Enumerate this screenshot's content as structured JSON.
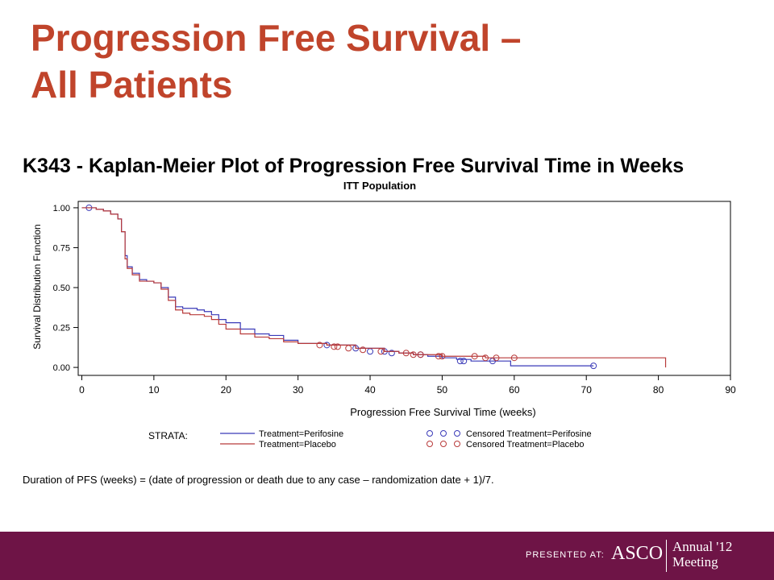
{
  "slide": {
    "title_line1": "Progression Free Survival –",
    "title_line2": "All Patients",
    "title_color": "#c0442b",
    "footnote": "Duration of PFS (weeks) = (date of progression or death due to any case – randomization date + 1)/7."
  },
  "footer": {
    "presented_at": "PRESENTED AT:",
    "logo_text": "ASCO",
    "meeting_line1": "Annual '12",
    "meeting_line2": "Meeting",
    "bar_color": "#6e1446"
  },
  "chart_data": {
    "type": "line",
    "title": "K343 - Kaplan-Meier Plot of Progression Free Survival Time in Weeks",
    "subtitle": "ITT Population",
    "xlabel": "Progression Free Survival Time (weeks)",
    "ylabel": "Survival Distribution Function",
    "xlim": [
      0,
      90
    ],
    "ylim": [
      0,
      1
    ],
    "xticks": [
      0,
      10,
      20,
      30,
      40,
      50,
      60,
      70,
      80,
      90
    ],
    "xtick_labels": [
      "0",
      "10",
      "20",
      "30",
      "40",
      "50",
      "60",
      "70",
      "80",
      "90"
    ],
    "yticks": [
      0,
      0.25,
      0.5,
      0.75,
      1
    ],
    "ytick_labels": [
      "0.00",
      "0.25",
      "0.50",
      "0.75",
      "1.00"
    ],
    "grid": false,
    "legend_title": "STRATA:",
    "legend_position": "bottom",
    "series": [
      {
        "name": "Treatment=Perifosine",
        "censored_name": "Censored Treatment=Perifosine",
        "color": "#3a3ab8",
        "x": [
          0,
          1,
          2,
          3,
          4,
          5,
          5.5,
          6,
          6.3,
          7,
          8,
          9,
          10,
          11,
          12,
          13,
          14,
          15,
          16,
          17,
          18,
          19,
          20,
          22,
          24,
          26,
          28,
          30,
          34,
          38,
          42,
          44,
          46,
          48,
          50,
          52,
          54,
          56,
          59,
          59.5,
          71
        ],
        "y": [
          1.0,
          1.0,
          0.99,
          0.98,
          0.96,
          0.93,
          0.85,
          0.7,
          0.63,
          0.59,
          0.55,
          0.54,
          0.53,
          0.5,
          0.44,
          0.38,
          0.37,
          0.37,
          0.36,
          0.35,
          0.33,
          0.3,
          0.28,
          0.24,
          0.21,
          0.2,
          0.17,
          0.15,
          0.14,
          0.12,
          0.1,
          0.09,
          0.08,
          0.07,
          0.06,
          0.05,
          0.04,
          0.04,
          0.04,
          0.01,
          0.01
        ],
        "censored_x": [
          1,
          34,
          38,
          40,
          42,
          43,
          47,
          52.5,
          53,
          57,
          71
        ],
        "censored_y": [
          1.0,
          0.14,
          0.12,
          0.1,
          0.1,
          0.09,
          0.08,
          0.04,
          0.04,
          0.04,
          0.01
        ]
      },
      {
        "name": "Treatment=Placebo",
        "censored_name": "Censored Treatment=Placebo",
        "color": "#b83a3a",
        "x": [
          0,
          1,
          2,
          3,
          4,
          5,
          5.5,
          6,
          6.3,
          7,
          8,
          9,
          10,
          11,
          12,
          13,
          14,
          15,
          16,
          17,
          18,
          19,
          20,
          22,
          24,
          26,
          28,
          30,
          34,
          38,
          42,
          44,
          46,
          48,
          50,
          52,
          54,
          56,
          58,
          60,
          81,
          81
        ],
        "y": [
          1.0,
          1.0,
          0.99,
          0.98,
          0.96,
          0.93,
          0.85,
          0.68,
          0.62,
          0.58,
          0.54,
          0.54,
          0.53,
          0.49,
          0.42,
          0.36,
          0.34,
          0.33,
          0.33,
          0.32,
          0.3,
          0.27,
          0.24,
          0.21,
          0.19,
          0.18,
          0.16,
          0.15,
          0.14,
          0.12,
          0.1,
          0.09,
          0.08,
          0.08,
          0.07,
          0.07,
          0.07,
          0.06,
          0.06,
          0.06,
          0.06,
          0.0
        ],
        "censored_x": [
          33,
          35,
          35.5,
          37,
          39,
          41.5,
          45,
          46,
          47,
          49.5,
          50,
          54.5,
          56,
          57.5,
          60
        ],
        "censored_y": [
          0.14,
          0.13,
          0.13,
          0.12,
          0.11,
          0.1,
          0.09,
          0.08,
          0.08,
          0.07,
          0.07,
          0.07,
          0.06,
          0.06,
          0.06
        ]
      }
    ]
  }
}
